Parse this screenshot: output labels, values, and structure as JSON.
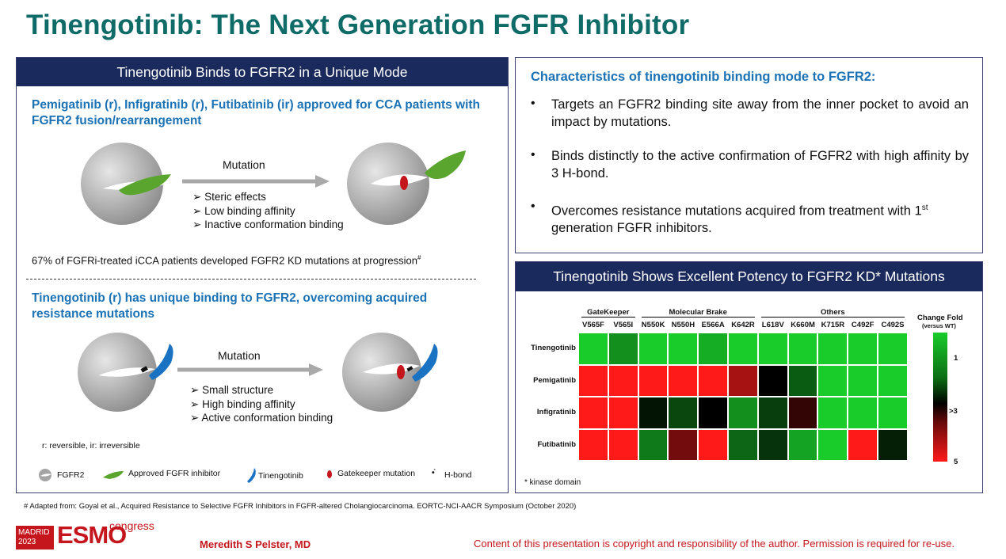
{
  "title": "Tinengotinib: The Next Generation FGFR Inhibitor",
  "left_panel": {
    "header": "Tinengotinib Binds to FGFR2 in a Unique Mode",
    "top_heading": "Pemigatinib (r), Infigratinib (r), Futibatinib (ir) approved for CCA patients with FGFR2 fusion/rearrangement",
    "top_arrow_label": "Mutation",
    "top_bullets": [
      "Steric effects",
      "Low binding affinity",
      "Inactive conformation binding"
    ],
    "stat_text": "67% of FGFRi-treated iCCA patients developed FGFR2 KD mutations at progression",
    "stat_sup": "#",
    "bottom_heading": "Tinengotinib (r) has unique binding to FGFR2, overcoming acquired resistance mutations",
    "bottom_arrow_label": "Mutation",
    "bottom_bullets": [
      "Small structure",
      "High binding affinity",
      "Active conformation binding"
    ],
    "reversible_note": "r: reversible, ir: irreversible",
    "legend": {
      "fgfr2": "FGFR2",
      "approved": "Approved FGFR inhibitor",
      "tinengotinib": "Tinengotinib",
      "gatekeeper": "Gatekeeper mutation",
      "hbond": "H-bond"
    },
    "colors": {
      "green": "#5aa52e",
      "blue": "#1a72c2",
      "red": "#c4161c",
      "gray": "#b9b9b9"
    }
  },
  "right_top": {
    "heading": "Characteristics of tinengotinib binding mode to FGFR2:",
    "bullets": [
      "Targets an FGFR2 binding site away from the inner pocket to avoid an impact by mutations.",
      "Binds distinctly to the active confirmation of FGFR2 with high affinity by 3 H-bond."
    ],
    "bullet3_pre": "Overcomes resistance mutations acquired from treatment with 1",
    "bullet3_sup": "st",
    "bullet3_post": " generation FGFR inhibitors."
  },
  "right_bottom": {
    "header": "Tinengotinib Shows Excellent Potency to FGFR2 KD* Mutations",
    "footnote": "* kinase domain",
    "scale_title": "Change Fold",
    "scale_subtitle": "(versus WT)",
    "scale_labels": [
      "1",
      ">3",
      "5"
    ]
  },
  "chart_data": {
    "type": "heatmap",
    "groups": [
      {
        "name": "GateKeeper",
        "columns": [
          "V565F",
          "V565I"
        ]
      },
      {
        "name": "Molecular Brake",
        "columns": [
          "N550K",
          "N550H",
          "E566A",
          "K642R"
        ]
      },
      {
        "name": "Others",
        "columns": [
          "L618V",
          "K660M",
          "K715R",
          "C492F",
          "C492S"
        ]
      }
    ],
    "columns": [
      "V565F",
      "V565I",
      "N550K",
      "N550H",
      "E566A",
      "K642R",
      "L618V",
      "K660M",
      "K715R",
      "C492F",
      "C492S"
    ],
    "rows": [
      "Tinengotinib",
      "Pemigatinib",
      "Infigratinib",
      "Futibatinib"
    ],
    "values": [
      [
        1.0,
        1.6,
        1.0,
        1.0,
        1.3,
        1.0,
        1.0,
        1.0,
        1.0,
        1.0,
        1.0
      ],
      [
        5.0,
        5.0,
        5.0,
        5.0,
        5.0,
        4.3,
        3.0,
        2.1,
        1.0,
        1.0,
        1.0
      ],
      [
        5.0,
        5.0,
        2.8,
        2.3,
        3.0,
        1.6,
        2.4,
        3.4,
        1.0,
        1.0,
        1.0
      ],
      [
        5.0,
        5.0,
        1.8,
        3.9,
        5.0,
        2.0,
        2.5,
        1.4,
        1.0,
        5.0,
        2.7
      ]
    ],
    "color_scale": {
      "min": 1,
      "mid": 3,
      "max": 5,
      "min_label": "1",
      "mid_label": ">3",
      "max_label": "5"
    }
  },
  "footer": {
    "citation": "# Adapted from: Goyal et al., Acquired Resistance to Selective FGFR Inhibitors in FGFR-altered Cholangiocarcinoma. EORTC-NCI-AACR Symposium (October 2020)",
    "logo_city": "MADRID",
    "logo_year": "2023",
    "logo_brand": "ESMO",
    "logo_congress": "congress",
    "author": "Meredith S Pelster, MD",
    "copyright": "Content of this presentation is copyright and responsibility of the author. Permission is required for re-use."
  }
}
